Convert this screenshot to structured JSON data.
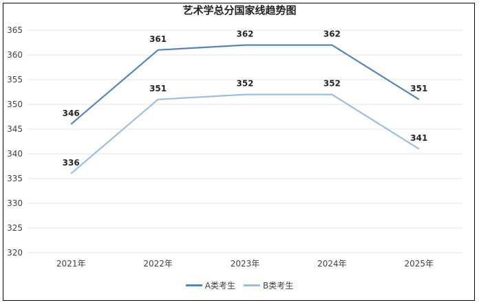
{
  "chart_data": {
    "type": "line",
    "title": "艺术学总分国家线趋势图",
    "categories": [
      "2021年",
      "2022年",
      "2023年",
      "2024年",
      "2025年"
    ],
    "series": [
      {
        "name": "A类考生",
        "values": [
          346,
          361,
          362,
          362,
          351
        ],
        "color": "#5585B5"
      },
      {
        "name": "B类考生",
        "values": [
          336,
          351,
          352,
          352,
          341
        ],
        "color": "#9CBEDC"
      }
    ],
    "ylim": [
      320,
      365
    ],
    "yticks": [
      320,
      325,
      330,
      335,
      340,
      345,
      350,
      355,
      360,
      365
    ],
    "grid": true,
    "legend_position": "bottom"
  }
}
